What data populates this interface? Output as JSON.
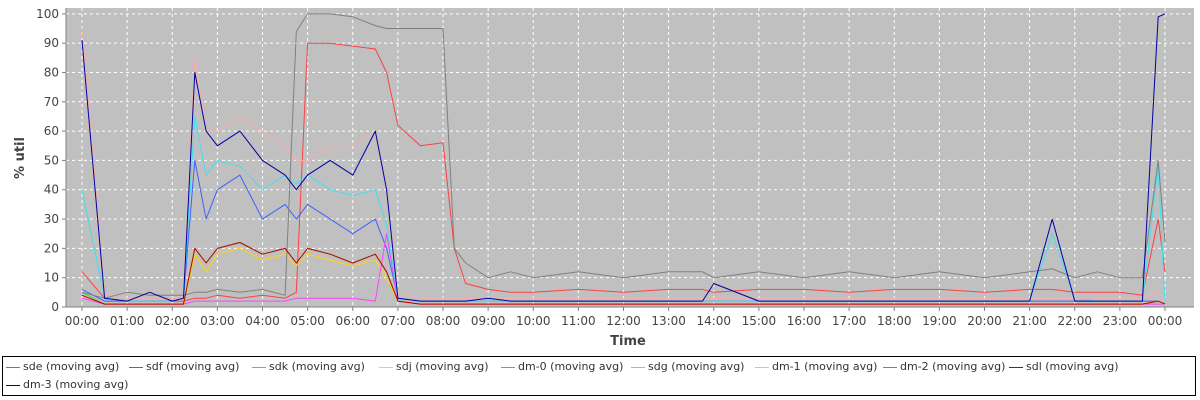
{
  "chart_data": {
    "type": "line",
    "title": "",
    "xlabel": "Time",
    "ylabel": "% util",
    "ylim": [
      0,
      100
    ],
    "yticks": [
      "0",
      "10",
      "20",
      "30",
      "40",
      "50",
      "60",
      "70",
      "80",
      "90",
      "100"
    ],
    "xticks": [
      "00:00",
      "01:00",
      "02:00",
      "03:00",
      "04:00",
      "05:00",
      "06:00",
      "07:00",
      "08:00",
      "09:00",
      "10:00",
      "11:00",
      "12:00",
      "13:00",
      "14:00",
      "15:00",
      "16:00",
      "17:00",
      "18:00",
      "19:00",
      "20:00",
      "21:00",
      "22:00",
      "23:00",
      "00:00"
    ],
    "x": [
      0,
      0.5,
      1,
      1.5,
      2,
      2.25,
      2.5,
      2.75,
      3,
      3.5,
      4,
      4.5,
      4.75,
      5,
      5.5,
      6,
      6.5,
      6.75,
      7,
      7.5,
      8,
      8.25,
      8.5,
      9,
      9.5,
      10,
      11,
      12,
      13,
      13.75,
      14,
      15,
      16,
      17,
      18,
      19,
      20,
      21,
      21.5,
      22,
      22.5,
      23,
      23.5,
      23.85,
      24
    ],
    "grid": true,
    "legend_position": "bottom",
    "series": [
      {
        "name": "sde (moving avg)",
        "color": "#ff4040",
        "values": [
          12,
          3,
          2,
          2,
          2,
          2,
          3,
          3,
          4,
          3,
          4,
          3,
          5,
          90,
          90,
          89,
          88,
          80,
          62,
          55,
          56,
          20,
          8,
          6,
          5,
          5,
          6,
          5,
          6,
          6,
          5,
          6,
          6,
          5,
          6,
          6,
          5,
          6,
          6,
          5,
          5,
          5,
          4,
          30,
          12
        ]
      },
      {
        "name": "sdf (moving avg)",
        "color": "#4060ff",
        "values": [
          6,
          2,
          2,
          2,
          2,
          3,
          50,
          30,
          40,
          45,
          30,
          35,
          30,
          35,
          30,
          25,
          30,
          20,
          3,
          2,
          2,
          2,
          2,
          2,
          2,
          2,
          2,
          2,
          2,
          2,
          2,
          2,
          2,
          2,
          2,
          2,
          2,
          2,
          2,
          2,
          2,
          2,
          2,
          2,
          1
        ]
      },
      {
        "name": "sdk (moving avg)",
        "color": "#40dd40",
        "values": [
          5,
          1,
          1,
          1,
          1,
          1,
          20,
          15,
          20,
          22,
          18,
          20,
          15,
          20,
          18,
          15,
          18,
          12,
          2,
          1,
          1,
          1,
          1,
          1,
          1,
          1,
          1,
          1,
          1,
          1,
          1,
          1,
          1,
          1,
          1,
          1,
          1,
          1,
          1,
          1,
          1,
          1,
          1,
          2,
          1
        ]
      },
      {
        "name": "sdj (moving avg)",
        "color": "#ffd700",
        "values": [
          4,
          1,
          1,
          1,
          1,
          1,
          18,
          12,
          18,
          20,
          16,
          18,
          14,
          18,
          16,
          14,
          16,
          10,
          2,
          1,
          1,
          1,
          1,
          1,
          1,
          1,
          1,
          1,
          1,
          1,
          1,
          1,
          1,
          1,
          1,
          1,
          1,
          1,
          1,
          1,
          1,
          1,
          1,
          2,
          1
        ]
      },
      {
        "name": "dm-0 (moving avg)",
        "color": "#ff40ff",
        "values": [
          3,
          1,
          1,
          1,
          1,
          1,
          2,
          2,
          2,
          2,
          2,
          2,
          3,
          3,
          3,
          3,
          2,
          25,
          2,
          1,
          1,
          1,
          1,
          1,
          1,
          1,
          1,
          1,
          1,
          1,
          1,
          1,
          1,
          1,
          1,
          1,
          1,
          1,
          1,
          1,
          1,
          1,
          1,
          1,
          1
        ]
      },
      {
        "name": "sdg (moving avg)",
        "color": "#40e0f0",
        "values": [
          40,
          3,
          2,
          2,
          2,
          3,
          65,
          45,
          50,
          48,
          40,
          45,
          42,
          45,
          40,
          38,
          40,
          28,
          3,
          2,
          2,
          2,
          2,
          2,
          2,
          2,
          2,
          2,
          2,
          2,
          2,
          2,
          2,
          2,
          2,
          2,
          2,
          2,
          25,
          3,
          2,
          2,
          2,
          48,
          1
        ]
      },
      {
        "name": "dm-1 (moving avg)",
        "color": "#ffaaaa",
        "values": [
          95,
          5,
          3,
          3,
          3,
          4,
          85,
          60,
          60,
          65,
          60,
          55,
          50,
          50,
          55,
          55,
          60,
          40,
          5,
          3,
          3,
          3,
          3,
          3,
          3,
          3,
          3,
          3,
          3,
          3,
          3,
          3,
          3,
          3,
          3,
          3,
          3,
          3,
          3,
          3,
          3,
          3,
          3,
          5,
          2
        ]
      },
      {
        "name": "dm-2 (moving avg)",
        "color": "#808080",
        "values": [
          5,
          3,
          5,
          4,
          4,
          4,
          5,
          5,
          6,
          5,
          6,
          4,
          94,
          100,
          100,
          99,
          96,
          95,
          95,
          95,
          95,
          20,
          15,
          10,
          12,
          10,
          12,
          10,
          12,
          12,
          10,
          12,
          10,
          12,
          10,
          12,
          10,
          12,
          13,
          10,
          12,
          10,
          10,
          50,
          22
        ]
      },
      {
        "name": "sdl (moving avg)",
        "color": "#c00000",
        "values": [
          4,
          1,
          1,
          1,
          1,
          1,
          20,
          15,
          20,
          22,
          18,
          20,
          15,
          20,
          18,
          15,
          18,
          12,
          2,
          1,
          1,
          1,
          1,
          1,
          1,
          1,
          1,
          1,
          1,
          1,
          1,
          1,
          1,
          1,
          1,
          1,
          1,
          1,
          1,
          1,
          1,
          1,
          1,
          2,
          1
        ]
      },
      {
        "name": "dm-3 (moving avg)",
        "color": "#0000a0",
        "values": [
          91,
          3,
          2,
          5,
          2,
          3,
          80,
          60,
          55,
          60,
          50,
          45,
          40,
          45,
          50,
          45,
          60,
          40,
          3,
          2,
          2,
          2,
          2,
          3,
          2,
          2,
          2,
          2,
          2,
          2,
          8,
          2,
          2,
          2,
          2,
          2,
          2,
          2,
          30,
          2,
          2,
          2,
          2,
          99,
          100
        ]
      }
    ]
  }
}
